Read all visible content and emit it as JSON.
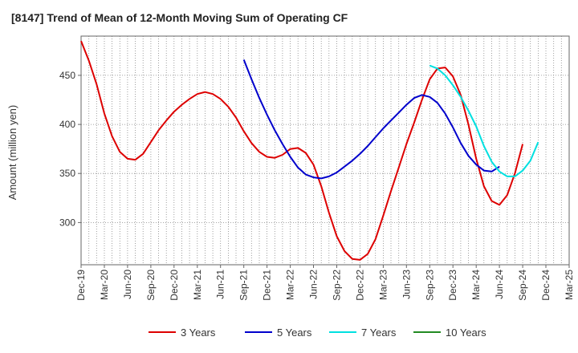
{
  "chart_data": {
    "type": "line",
    "title": "[8147]  Trend of Mean of 12-Month Moving Sum of Operating CF",
    "xlabel": "",
    "ylabel": "Amount (million yen)",
    "ylim": [
      257,
      490
    ],
    "yticks": [
      300,
      350,
      400,
      450
    ],
    "grid": true,
    "legend_position": "bottom",
    "x_start": "Dec-19",
    "x_end": "Mar-25",
    "x_tick_labels": [
      "Dec-19",
      "Mar-20",
      "Jun-20",
      "Sep-20",
      "Dec-20",
      "Mar-21",
      "Jun-21",
      "Sep-21",
      "Dec-21",
      "Mar-22",
      "Jun-22",
      "Sep-22",
      "Dec-22",
      "Mar-23",
      "Jun-23",
      "Sep-23",
      "Dec-23",
      "Mar-24",
      "Jun-24",
      "Sep-24",
      "Dec-24",
      "Mar-25"
    ],
    "series": [
      {
        "name": "3 Years",
        "color": "#dd0000",
        "start_index": 0,
        "values": [
          485,
          465,
          441,
          411,
          388,
          372,
          365,
          364,
          370,
          382,
          394,
          404,
          413,
          420,
          426,
          431,
          433,
          431,
          426,
          418,
          407,
          393,
          381,
          372,
          367,
          366,
          369,
          375,
          376,
          371,
          359,
          337,
          310,
          286,
          271,
          263,
          262,
          268,
          283,
          307,
          332,
          356,
          380,
          402,
          425,
          446,
          457,
          458,
          449,
          430,
          400,
          365,
          337,
          322,
          318,
          328,
          350,
          380
        ]
      },
      {
        "name": "5 Years",
        "color": "#0000cc",
        "start_index": 21,
        "values": [
          466,
          446,
          427,
          410,
          394,
          380,
          367,
          356,
          349,
          346,
          345,
          347,
          351,
          357,
          363,
          370,
          378,
          387,
          396,
          404,
          412,
          420,
          427,
          430,
          428,
          422,
          411,
          397,
          381,
          368,
          359,
          353,
          352,
          357
        ]
      },
      {
        "name": "7 Years",
        "color": "#00e0e0",
        "start_index": 45,
        "values": [
          460,
          457,
          450,
          440,
          428,
          414,
          398,
          378,
          362,
          352,
          347,
          347,
          353,
          363,
          382
        ]
      },
      {
        "name": "10 Years",
        "color": "#228b22",
        "start_index": 0,
        "values": []
      }
    ]
  }
}
